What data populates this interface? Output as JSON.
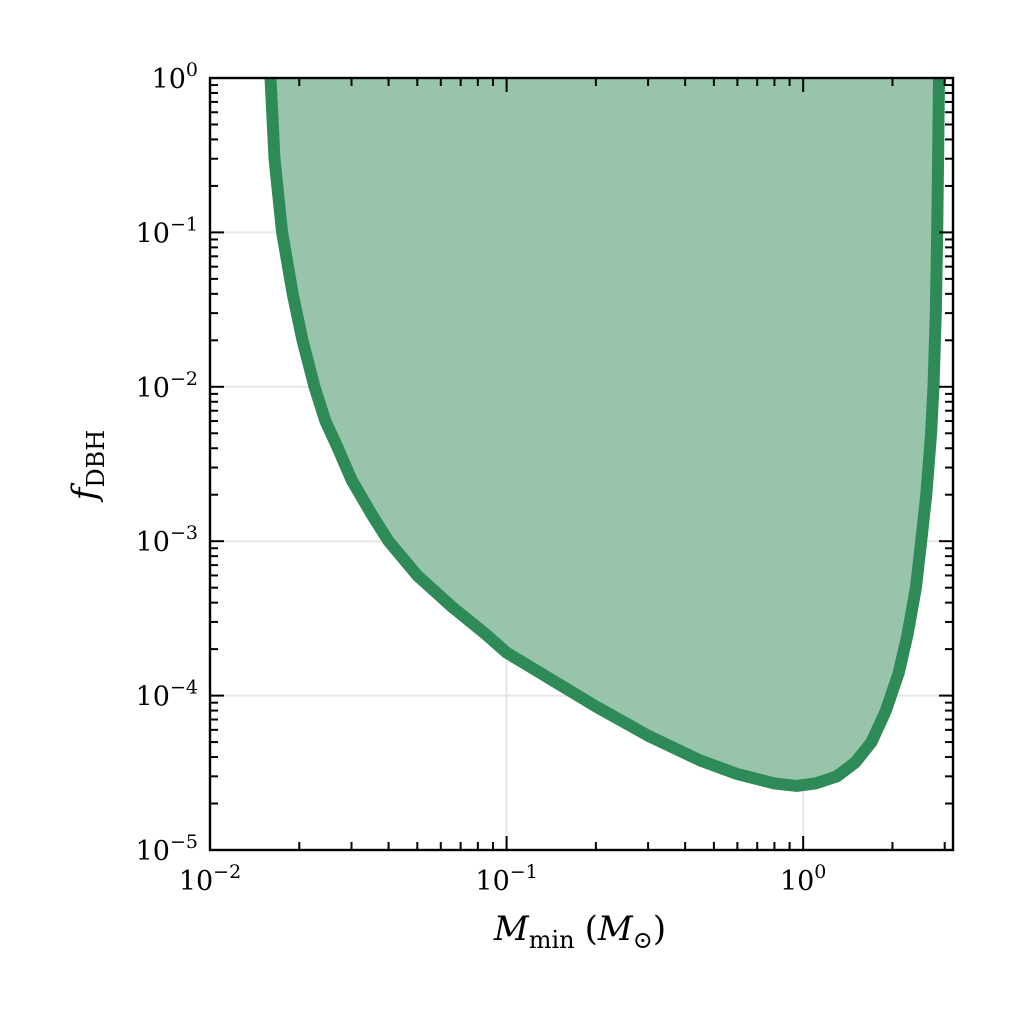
{
  "chart_data": {
    "type": "area",
    "title": "",
    "x_scale": "log",
    "y_scale": "log",
    "xlim": [
      0.01,
      3.2
    ],
    "ylim": [
      1e-05,
      1
    ],
    "grid": true,
    "xlabel": {
      "symbol": "M",
      "subscript": "min",
      "unit_open": "(",
      "unit_symbol": "M",
      "unit_subscript": "⊙",
      "unit_close": ")"
    },
    "ylabel": {
      "symbol": "f",
      "subscript": "DBH"
    },
    "x_ticks": [
      {
        "value": 0.01,
        "base": "10",
        "exp": "−2"
      },
      {
        "value": 0.1,
        "base": "10",
        "exp": "−1"
      },
      {
        "value": 1,
        "base": "10",
        "exp": "0"
      }
    ],
    "y_ticks": [
      {
        "value": 1,
        "base": "10",
        "exp": "0"
      },
      {
        "value": 0.1,
        "base": "10",
        "exp": "−1"
      },
      {
        "value": 0.01,
        "base": "10",
        "exp": "−2"
      },
      {
        "value": 0.001,
        "base": "10",
        "exp": "−3"
      },
      {
        "value": 0.0001,
        "base": "10",
        "exp": "−4"
      },
      {
        "value": 1e-05,
        "base": "10",
        "exp": "−5"
      }
    ],
    "colors": {
      "line": "#2e8b57",
      "fill": "#98c4ab"
    },
    "series": [
      {
        "x": [
          0.016,
          0.0165,
          0.0175,
          0.019,
          0.0205,
          0.0225,
          0.0245,
          0.027,
          0.03,
          0.035,
          0.04,
          0.05,
          0.065,
          0.085,
          0.1,
          0.13,
          0.2,
          0.3,
          0.45,
          0.6,
          0.8,
          0.95,
          1.1,
          1.3,
          1.5,
          1.7,
          1.9,
          2.1,
          2.25,
          2.4,
          2.5,
          2.6,
          2.7,
          2.75,
          2.8,
          2.83,
          2.85,
          2.87
        ],
        "y": [
          1.0,
          0.3,
          0.1,
          0.04,
          0.02,
          0.01,
          0.006,
          0.004,
          0.0025,
          0.0015,
          0.001,
          0.0006,
          0.00038,
          0.00025,
          0.00019,
          0.00014,
          8.5e-05,
          5.5e-05,
          3.8e-05,
          3.1e-05,
          2.7e-05,
          2.6e-05,
          2.7e-05,
          3e-05,
          3.7e-05,
          5e-05,
          8e-05,
          0.00014,
          0.00025,
          0.0005,
          0.001,
          0.002,
          0.005,
          0.01,
          0.03,
          0.1,
          0.3,
          1.0
        ]
      }
    ]
  }
}
